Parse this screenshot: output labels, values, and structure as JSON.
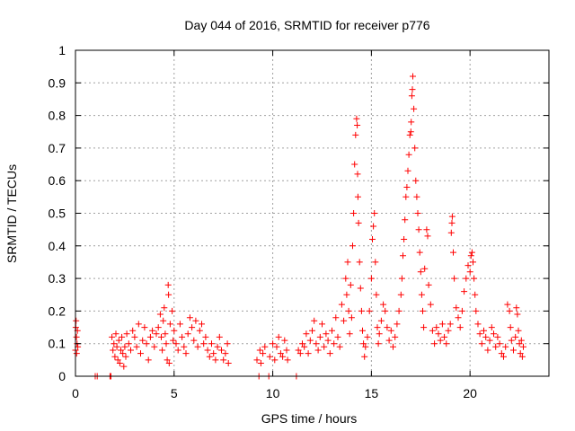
{
  "chart_data": {
    "type": "scatter",
    "title": "Day 044 of 2016, SRMTID for receiver p776",
    "xlabel": "GPS time / hours",
    "ylabel": "SRMTID / TECUs",
    "xlim": [
      0,
      24
    ],
    "ylim": [
      0,
      1
    ],
    "xticks": [
      0,
      5,
      10,
      15,
      20
    ],
    "xtick_labels": [
      "0",
      "5",
      "10",
      "15",
      "20"
    ],
    "yticks": [
      0,
      0.1,
      0.2,
      0.3,
      0.4,
      0.5,
      0.6,
      0.7,
      0.8,
      0.9,
      1
    ],
    "ytick_labels": [
      "0",
      "0.1",
      "0.2",
      "0.3",
      "0.4",
      "0.5",
      "0.6",
      "0.7",
      "0.8",
      "0.9",
      "1"
    ],
    "grid": true,
    "marker": "+",
    "color": "#ff0000",
    "series": [
      {
        "name": "SRMTID",
        "points": [
          [
            0.0,
            0.08
          ],
          [
            0.02,
            0.15
          ],
          [
            0.03,
            0.17
          ],
          [
            0.05,
            0.12
          ],
          [
            0.06,
            0.07
          ],
          [
            0.08,
            0.1
          ],
          [
            0.1,
            0.14
          ],
          [
            0.12,
            0.09
          ],
          [
            1.0,
            0.0
          ],
          [
            1.1,
            0.0
          ],
          [
            1.75,
            0.0
          ],
          [
            1.8,
            0.0
          ],
          [
            1.85,
            0.12
          ],
          [
            1.9,
            0.08
          ],
          [
            1.95,
            0.1
          ],
          [
            2.0,
            0.06
          ],
          [
            2.05,
            0.13
          ],
          [
            2.1,
            0.09
          ],
          [
            2.15,
            0.05
          ],
          [
            2.2,
            0.11
          ],
          [
            2.25,
            0.04
          ],
          [
            2.3,
            0.08
          ],
          [
            2.35,
            0.12
          ],
          [
            2.4,
            0.07
          ],
          [
            2.45,
            0.03
          ],
          [
            2.5,
            0.09
          ],
          [
            2.55,
            0.06
          ],
          [
            2.6,
            0.13
          ],
          [
            2.7,
            0.1
          ],
          [
            2.8,
            0.08
          ],
          [
            2.9,
            0.14
          ],
          [
            3.0,
            0.12
          ],
          [
            3.1,
            0.09
          ],
          [
            3.2,
            0.16
          ],
          [
            3.3,
            0.07
          ],
          [
            3.4,
            0.11
          ],
          [
            3.5,
            0.15
          ],
          [
            3.6,
            0.1
          ],
          [
            3.7,
            0.05
          ],
          [
            3.8,
            0.12
          ],
          [
            3.9,
            0.14
          ],
          [
            4.0,
            0.09
          ],
          [
            4.1,
            0.13
          ],
          [
            4.2,
            0.15
          ],
          [
            4.3,
            0.19
          ],
          [
            4.35,
            0.12
          ],
          [
            4.4,
            0.08
          ],
          [
            4.45,
            0.17
          ],
          [
            4.5,
            0.21
          ],
          [
            4.55,
            0.13
          ],
          [
            4.6,
            0.1
          ],
          [
            4.65,
            0.05
          ],
          [
            4.7,
            0.28
          ],
          [
            4.72,
            0.25
          ],
          [
            4.75,
            0.04
          ],
          [
            4.8,
            0.16
          ],
          [
            4.9,
            0.2
          ],
          [
            4.95,
            0.11
          ],
          [
            5.0,
            0.14
          ],
          [
            5.1,
            0.1
          ],
          [
            5.2,
            0.08
          ],
          [
            5.3,
            0.16
          ],
          [
            5.4,
            0.12
          ],
          [
            5.5,
            0.09
          ],
          [
            5.6,
            0.07
          ],
          [
            5.7,
            0.13
          ],
          [
            5.8,
            0.18
          ],
          [
            5.9,
            0.15
          ],
          [
            6.0,
            0.11
          ],
          [
            6.1,
            0.17
          ],
          [
            6.2,
            0.09
          ],
          [
            6.3,
            0.14
          ],
          [
            6.4,
            0.16
          ],
          [
            6.5,
            0.1
          ],
          [
            6.6,
            0.12
          ],
          [
            6.7,
            0.08
          ],
          [
            6.8,
            0.06
          ],
          [
            6.9,
            0.1
          ],
          [
            7.0,
            0.07
          ],
          [
            7.1,
            0.05
          ],
          [
            7.2,
            0.09
          ],
          [
            7.3,
            0.12
          ],
          [
            7.4,
            0.08
          ],
          [
            7.5,
            0.05
          ],
          [
            7.6,
            0.07
          ],
          [
            7.7,
            0.1
          ],
          [
            7.75,
            0.04
          ],
          [
            9.2,
            0.05
          ],
          [
            9.3,
            0.0
          ],
          [
            9.35,
            0.08
          ],
          [
            9.4,
            0.04
          ],
          [
            9.5,
            0.07
          ],
          [
            9.6,
            0.09
          ],
          [
            9.8,
            0.0
          ],
          [
            9.85,
            0.06
          ],
          [
            10.0,
            0.1
          ],
          [
            10.1,
            0.05
          ],
          [
            10.2,
            0.09
          ],
          [
            10.3,
            0.12
          ],
          [
            10.4,
            0.07
          ],
          [
            10.5,
            0.06
          ],
          [
            10.6,
            0.11
          ],
          [
            10.7,
            0.08
          ],
          [
            10.75,
            0.05
          ],
          [
            11.2,
            0.0
          ],
          [
            11.3,
            0.08
          ],
          [
            11.4,
            0.07
          ],
          [
            11.5,
            0.1
          ],
          [
            11.6,
            0.09
          ],
          [
            11.7,
            0.13
          ],
          [
            11.8,
            0.07
          ],
          [
            11.9,
            0.11
          ],
          [
            12.0,
            0.14
          ],
          [
            12.1,
            0.17
          ],
          [
            12.2,
            0.1
          ],
          [
            12.3,
            0.08
          ],
          [
            12.4,
            0.12
          ],
          [
            12.5,
            0.16
          ],
          [
            12.6,
            0.09
          ],
          [
            12.7,
            0.13
          ],
          [
            12.8,
            0.11
          ],
          [
            12.9,
            0.07
          ],
          [
            13.0,
            0.14
          ],
          [
            13.1,
            0.1
          ],
          [
            13.2,
            0.18
          ],
          [
            13.3,
            0.12
          ],
          [
            13.4,
            0.09
          ],
          [
            13.5,
            0.22
          ],
          [
            13.6,
            0.17
          ],
          [
            13.7,
            0.3
          ],
          [
            13.75,
            0.25
          ],
          [
            13.8,
            0.35
          ],
          [
            13.85,
            0.2
          ],
          [
            13.9,
            0.13
          ],
          [
            13.95,
            0.28
          ],
          [
            14.0,
            0.18
          ],
          [
            14.05,
            0.4
          ],
          [
            14.1,
            0.5
          ],
          [
            14.15,
            0.65
          ],
          [
            14.2,
            0.74
          ],
          [
            14.25,
            0.79
          ],
          [
            14.28,
            0.77
          ],
          [
            14.3,
            0.62
          ],
          [
            14.32,
            0.55
          ],
          [
            14.35,
            0.47
          ],
          [
            14.4,
            0.35
          ],
          [
            14.45,
            0.27
          ],
          [
            14.5,
            0.2
          ],
          [
            14.55,
            0.14
          ],
          [
            14.6,
            0.1
          ],
          [
            14.65,
            0.06
          ],
          [
            14.7,
            0.09
          ],
          [
            14.8,
            0.12
          ],
          [
            14.9,
            0.2
          ],
          [
            15.0,
            0.3
          ],
          [
            15.05,
            0.42
          ],
          [
            15.1,
            0.46
          ],
          [
            15.15,
            0.5
          ],
          [
            15.2,
            0.35
          ],
          [
            15.25,
            0.25
          ],
          [
            15.3,
            0.15
          ],
          [
            15.35,
            0.1
          ],
          [
            15.4,
            0.13
          ],
          [
            15.5,
            0.17
          ],
          [
            15.6,
            0.22
          ],
          [
            15.7,
            0.2
          ],
          [
            15.8,
            0.15
          ],
          [
            15.9,
            0.11
          ],
          [
            16.0,
            0.14
          ],
          [
            16.1,
            0.09
          ],
          [
            16.2,
            0.12
          ],
          [
            16.3,
            0.16
          ],
          [
            16.4,
            0.2
          ],
          [
            16.5,
            0.25
          ],
          [
            16.55,
            0.3
          ],
          [
            16.6,
            0.37
          ],
          [
            16.65,
            0.42
          ],
          [
            16.7,
            0.48
          ],
          [
            16.75,
            0.55
          ],
          [
            16.8,
            0.58
          ],
          [
            16.85,
            0.63
          ],
          [
            16.9,
            0.68
          ],
          [
            16.95,
            0.74
          ],
          [
            17.0,
            0.75
          ],
          [
            17.02,
            0.78
          ],
          [
            17.05,
            0.86
          ],
          [
            17.08,
            0.88
          ],
          [
            17.1,
            0.92
          ],
          [
            17.15,
            0.82
          ],
          [
            17.2,
            0.7
          ],
          [
            17.25,
            0.6
          ],
          [
            17.3,
            0.55
          ],
          [
            17.35,
            0.5
          ],
          [
            17.4,
            0.45
          ],
          [
            17.45,
            0.38
          ],
          [
            17.5,
            0.32
          ],
          [
            17.55,
            0.25
          ],
          [
            17.6,
            0.2
          ],
          [
            17.65,
            0.15
          ],
          [
            17.7,
            0.33
          ],
          [
            17.8,
            0.45
          ],
          [
            17.85,
            0.43
          ],
          [
            17.9,
            0.28
          ],
          [
            18.0,
            0.22
          ],
          [
            18.1,
            0.14
          ],
          [
            18.2,
            0.1
          ],
          [
            18.3,
            0.15
          ],
          [
            18.4,
            0.13
          ],
          [
            18.5,
            0.11
          ],
          [
            18.6,
            0.16
          ],
          [
            18.7,
            0.12
          ],
          [
            18.8,
            0.1
          ],
          [
            18.9,
            0.14
          ],
          [
            19.0,
            0.16
          ],
          [
            19.05,
            0.44
          ],
          [
            19.08,
            0.47
          ],
          [
            19.1,
            0.49
          ],
          [
            19.15,
            0.38
          ],
          [
            19.2,
            0.3
          ],
          [
            19.3,
            0.21
          ],
          [
            19.4,
            0.18
          ],
          [
            19.5,
            0.15
          ],
          [
            19.6,
            0.2
          ],
          [
            19.7,
            0.26
          ],
          [
            19.8,
            0.3
          ],
          [
            19.9,
            0.34
          ],
          [
            20.0,
            0.32
          ],
          [
            20.05,
            0.37
          ],
          [
            20.1,
            0.38
          ],
          [
            20.15,
            0.35
          ],
          [
            20.2,
            0.3
          ],
          [
            20.25,
            0.25
          ],
          [
            20.3,
            0.2
          ],
          [
            20.4,
            0.16
          ],
          [
            20.5,
            0.13
          ],
          [
            20.6,
            0.1
          ],
          [
            20.7,
            0.14
          ],
          [
            20.8,
            0.12
          ],
          [
            20.9,
            0.08
          ],
          [
            21.0,
            0.11
          ],
          [
            21.1,
            0.15
          ],
          [
            21.2,
            0.13
          ],
          [
            21.3,
            0.09
          ],
          [
            21.4,
            0.12
          ],
          [
            21.5,
            0.1
          ],
          [
            21.6,
            0.07
          ],
          [
            21.7,
            0.06
          ],
          [
            21.8,
            0.09
          ],
          [
            21.9,
            0.22
          ],
          [
            22.0,
            0.2
          ],
          [
            22.05,
            0.15
          ],
          [
            22.1,
            0.11
          ],
          [
            22.2,
            0.08
          ],
          [
            22.3,
            0.12
          ],
          [
            22.35,
            0.21
          ],
          [
            22.4,
            0.19
          ],
          [
            22.45,
            0.14
          ],
          [
            22.5,
            0.1
          ],
          [
            22.55,
            0.07
          ],
          [
            22.6,
            0.11
          ],
          [
            22.65,
            0.06
          ],
          [
            22.7,
            0.09
          ]
        ]
      }
    ]
  }
}
